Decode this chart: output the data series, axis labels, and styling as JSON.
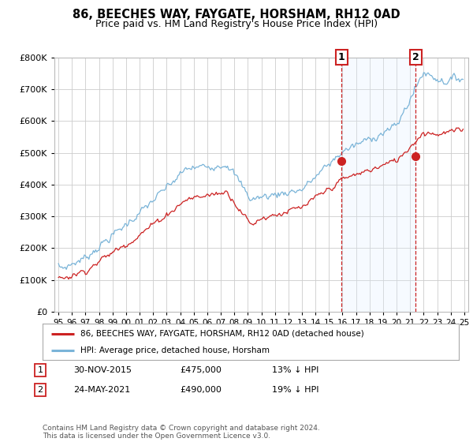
{
  "title": "86, BEECHES WAY, FAYGATE, HORSHAM, RH12 0AD",
  "subtitle": "Price paid vs. HM Land Registry's House Price Index (HPI)",
  "legend_line1": "86, BEECHES WAY, FAYGATE, HORSHAM, RH12 0AD (detached house)",
  "legend_line2": "HPI: Average price, detached house, Horsham",
  "sale1_date": "30-NOV-2015",
  "sale1_price": "£475,000",
  "sale1_hpi": "13% ↓ HPI",
  "sale2_date": "24-MAY-2021",
  "sale2_price": "£490,000",
  "sale2_hpi": "19% ↓ HPI",
  "footer": "Contains HM Land Registry data © Crown copyright and database right 2024.\nThis data is licensed under the Open Government Licence v3.0.",
  "hpi_color": "#7ab4d8",
  "price_color": "#cc2222",
  "marker_color": "#cc2222",
  "shade_color": "#ddeeff",
  "background_color": "#ffffff",
  "grid_color": "#cccccc",
  "ylim": [
    0,
    800000
  ],
  "yticks": [
    0,
    100000,
    200000,
    300000,
    400000,
    500000,
    600000,
    700000,
    800000
  ],
  "sale1_year": 2015.92,
  "sale1_value": 475000,
  "sale2_year": 2021.42,
  "sale2_value": 490000
}
